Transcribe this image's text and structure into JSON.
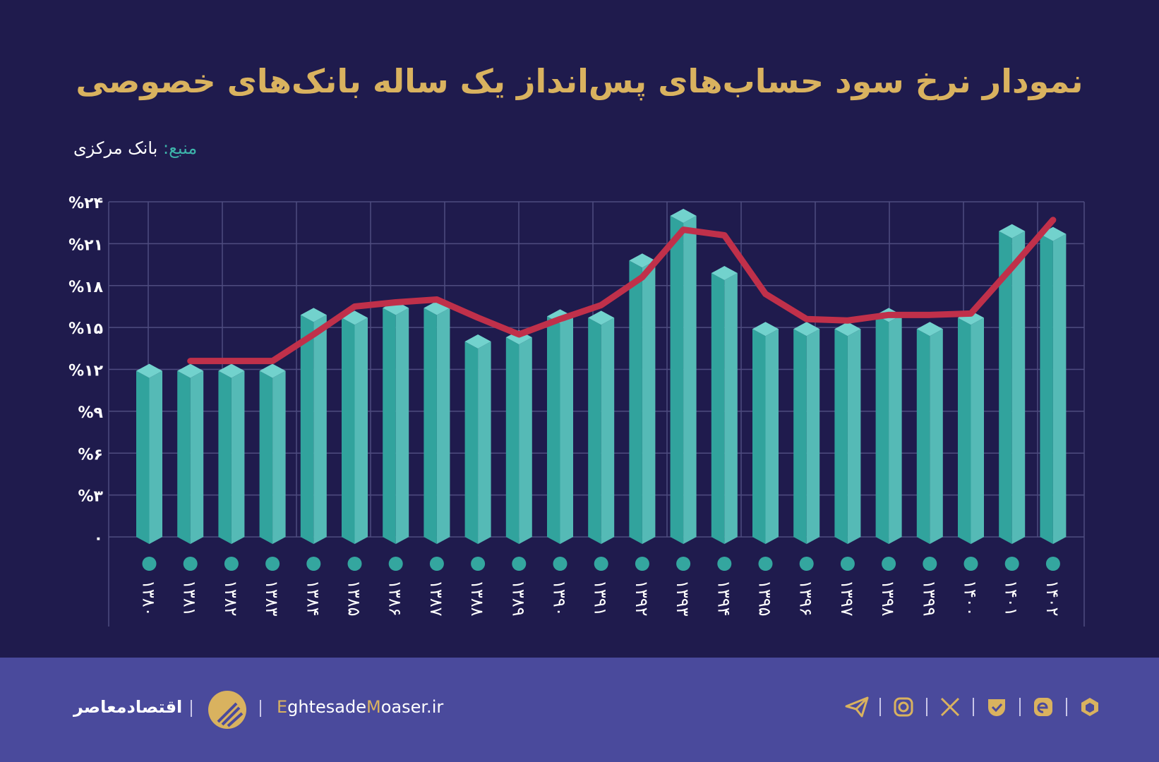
{
  "title": "نمودار نرخ سود حساب‌های پس‌انداز یک ساله بانک‌های خصوصی",
  "source": {
    "label": "منبع:",
    "value": "بانک مرکزی"
  },
  "colors": {
    "background": "#1f1b4d",
    "footer": "#4a4a9c",
    "title": "#d9b25f",
    "bar_left": "#31a39d",
    "bar_right": "#55bab6",
    "bar_top": "#72d2cd",
    "line": "#c0304a",
    "dot": "#34a69f",
    "grid": "#4f4c80"
  },
  "chart_data": {
    "type": "bar",
    "title": "نمودار نرخ سود حساب‌های پس‌انداز یک ساله بانک‌های خصوصی",
    "xlabel": "",
    "ylabel": "",
    "ylim": [
      0,
      24
    ],
    "grid": true,
    "y_ticks": [
      "۰",
      "%۳",
      "%۶",
      "%۹",
      "%۱۲",
      "%۱۵",
      "%۱۸",
      "%۲۱",
      "%۲۴"
    ],
    "y_tick_values": [
      0,
      3,
      6,
      9,
      12,
      15,
      18,
      21,
      24
    ],
    "categories": [
      "۱۳۸۰",
      "۱۳۸۱",
      "۱۳۸۲",
      "۱۳۸۳",
      "۱۳۸۴",
      "۱۳۸۵",
      "۱۳۸۶",
      "۱۳۸۷",
      "۱۳۸۸",
      "۱۳۸۹",
      "۱۳۹۰",
      "۱۳۹۱",
      "۱۳۹۲",
      "۱۳۹۳",
      "۱۳۹۴",
      "۱۳۹۵",
      "۱۳۹۶",
      "۱۳۹۷",
      "۱۳۹۸",
      "۱۳۹۹",
      "۱۴۰۰",
      "۱۴۰۱",
      "۱۴۰۲"
    ],
    "series": [
      {
        "type": "bar",
        "values": [
          12.4,
          12.4,
          12.4,
          12.4,
          16.4,
          16.2,
          16.9,
          16.9,
          14.5,
          14.8,
          16.3,
          16.2,
          20.3,
          23.5,
          19.4,
          15.4,
          15.4,
          15.4,
          16.4,
          15.4,
          16.2,
          22.4,
          22.2
        ]
      },
      {
        "type": "line",
        "values": [
          null,
          12.6,
          12.6,
          12.6,
          14.5,
          16.5,
          16.8,
          17.0,
          15.7,
          14.5,
          15.6,
          16.6,
          18.6,
          22.0,
          21.6,
          17.4,
          15.6,
          15.5,
          15.9,
          15.9,
          16.0,
          19.3,
          22.7
        ]
      }
    ]
  },
  "footer": {
    "brand": "اقتصادمعاصر",
    "site_e": "E",
    "site_1": "ghtesade",
    "site_m": "M",
    "site_2": "oaser.ir",
    "icons": [
      "telegram-icon",
      "instagram-icon",
      "x-icon",
      "bale-icon",
      "eitaa-icon",
      "rubika-icon"
    ]
  }
}
